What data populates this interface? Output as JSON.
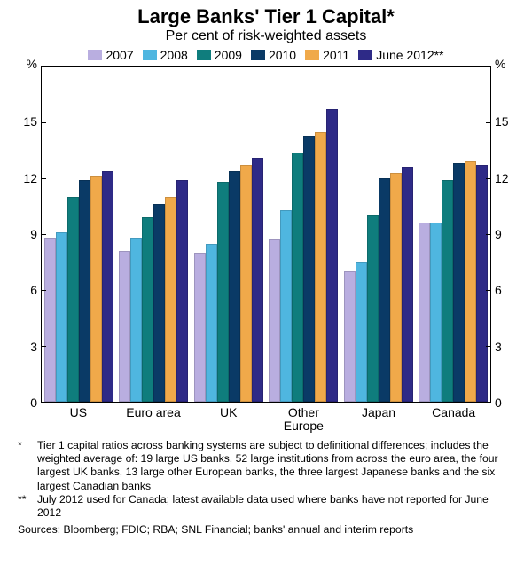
{
  "title": "Large Banks' Tier 1 Capital*",
  "title_fontsize": 22,
  "subtitle": "Per cent of risk-weighted assets",
  "subtitle_fontsize": 16,
  "y_unit": "%",
  "chart": {
    "type": "bar",
    "ylim": [
      0,
      18
    ],
    "ytick_step": 3,
    "yticks": [
      0,
      3,
      6,
      9,
      12,
      15
    ],
    "background_color": "#ffffff",
    "categories": [
      "US",
      "Euro area",
      "UK",
      "Other\nEurope",
      "Japan",
      "Canada"
    ],
    "series": [
      {
        "label": "2007",
        "color": "#b9aee0"
      },
      {
        "label": "2008",
        "color": "#4fb6e0"
      },
      {
        "label": "2009",
        "color": "#0f7d7d"
      },
      {
        "label": "2010",
        "color": "#0a3a66"
      },
      {
        "label": "2011",
        "color": "#f0a94a"
      },
      {
        "label": "June 2012**",
        "color": "#2e2a87"
      }
    ],
    "values": [
      [
        8.8,
        9.1,
        11.0,
        11.9,
        12.1,
        12.4
      ],
      [
        8.1,
        8.8,
        9.9,
        10.6,
        11.0,
        11.9
      ],
      [
        8.0,
        8.5,
        11.8,
        12.4,
        12.7,
        13.1
      ],
      [
        8.7,
        10.3,
        13.4,
        14.3,
        14.5,
        15.7
      ],
      [
        7.0,
        7.5,
        10.0,
        12.0,
        12.3,
        12.6
      ],
      [
        9.6,
        9.6,
        11.9,
        12.8,
        12.9,
        12.7
      ]
    ]
  },
  "footnotes": [
    {
      "marker": "*",
      "text": "Tier 1 capital ratios across banking systems are subject to definitional differences; includes the weighted average of: 19 large US banks, 52 large institutions from across the euro area, the four largest UK banks, 13 large other European banks, the three largest Japanese banks and the six largest Canadian banks"
    },
    {
      "marker": "**",
      "text": "July 2012 used for Canada; latest available data used where banks have not reported for June 2012"
    }
  ],
  "sources": "Sources: Bloomberg; FDIC; RBA; SNL Financial; banks' annual and interim reports"
}
